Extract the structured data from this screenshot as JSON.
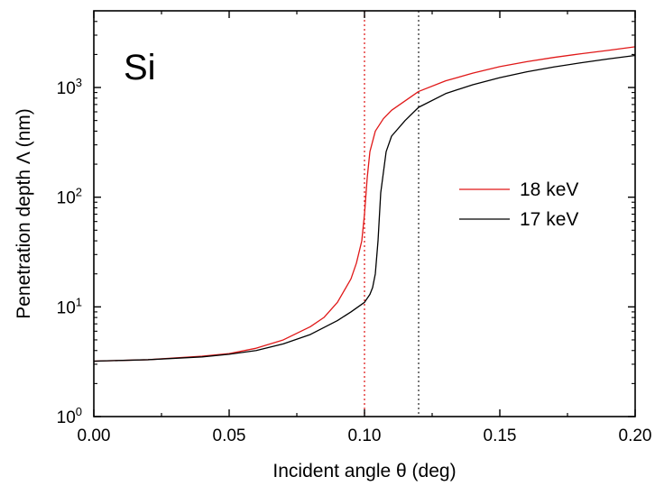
{
  "chart_data": {
    "type": "line",
    "annotation": "Si",
    "xlabel": "Incident angle θ (deg)",
    "ylabel": "Penetration depth Λ (nm)",
    "xlim": [
      0.0,
      0.2
    ],
    "ylim": [
      1,
      5000
    ],
    "y_scale": "log",
    "x_ticks": [
      "0.00",
      "0.05",
      "0.10",
      "0.15",
      "0.20"
    ],
    "x_tick_values": [
      0.0,
      0.05,
      0.1,
      0.15,
      0.2
    ],
    "y_ticks": [
      {
        "base": "10",
        "exp": "0",
        "value": 1
      },
      {
        "base": "10",
        "exp": "1",
        "value": 10
      },
      {
        "base": "10",
        "exp": "2",
        "value": 100
      },
      {
        "base": "10",
        "exp": "3",
        "value": 1000
      }
    ],
    "legend_position": "right-middle",
    "vlines": [
      {
        "x": 0.1,
        "color": "#e02020",
        "style": "dotted"
      },
      {
        "x": 0.12,
        "color": "#333333",
        "style": "dotted"
      }
    ],
    "series": [
      {
        "name": "18 keV",
        "color": "#e01818",
        "x": [
          0.0,
          0.02,
          0.04,
          0.05,
          0.06,
          0.07,
          0.08,
          0.085,
          0.09,
          0.095,
          0.097,
          0.099,
          0.1,
          0.101,
          0.102,
          0.104,
          0.107,
          0.11,
          0.12,
          0.13,
          0.14,
          0.15,
          0.16,
          0.17,
          0.18,
          0.19,
          0.2
        ],
        "y": [
          3.2,
          3.3,
          3.55,
          3.75,
          4.2,
          5.0,
          6.6,
          8.0,
          11.0,
          18.0,
          25.0,
          40.0,
          70.0,
          150.0,
          260.0,
          400.0,
          520.0,
          620.0,
          920.0,
          1150.0,
          1350.0,
          1550.0,
          1720.0,
          1880.0,
          2030.0,
          2180.0,
          2350.0
        ]
      },
      {
        "name": "17 keV",
        "color": "#000000",
        "x": [
          0.0,
          0.02,
          0.04,
          0.05,
          0.06,
          0.07,
          0.08,
          0.09,
          0.095,
          0.1,
          0.102,
          0.103,
          0.104,
          0.105,
          0.106,
          0.108,
          0.11,
          0.115,
          0.12,
          0.13,
          0.14,
          0.15,
          0.16,
          0.17,
          0.18,
          0.19,
          0.2
        ],
        "y": [
          3.2,
          3.3,
          3.5,
          3.7,
          4.0,
          4.6,
          5.6,
          7.5,
          9.0,
          11.0,
          13.0,
          15.0,
          20.0,
          40.0,
          110.0,
          260.0,
          360.0,
          500.0,
          660.0,
          880.0,
          1060.0,
          1230.0,
          1390.0,
          1540.0,
          1680.0,
          1820.0,
          1960.0
        ]
      }
    ]
  }
}
